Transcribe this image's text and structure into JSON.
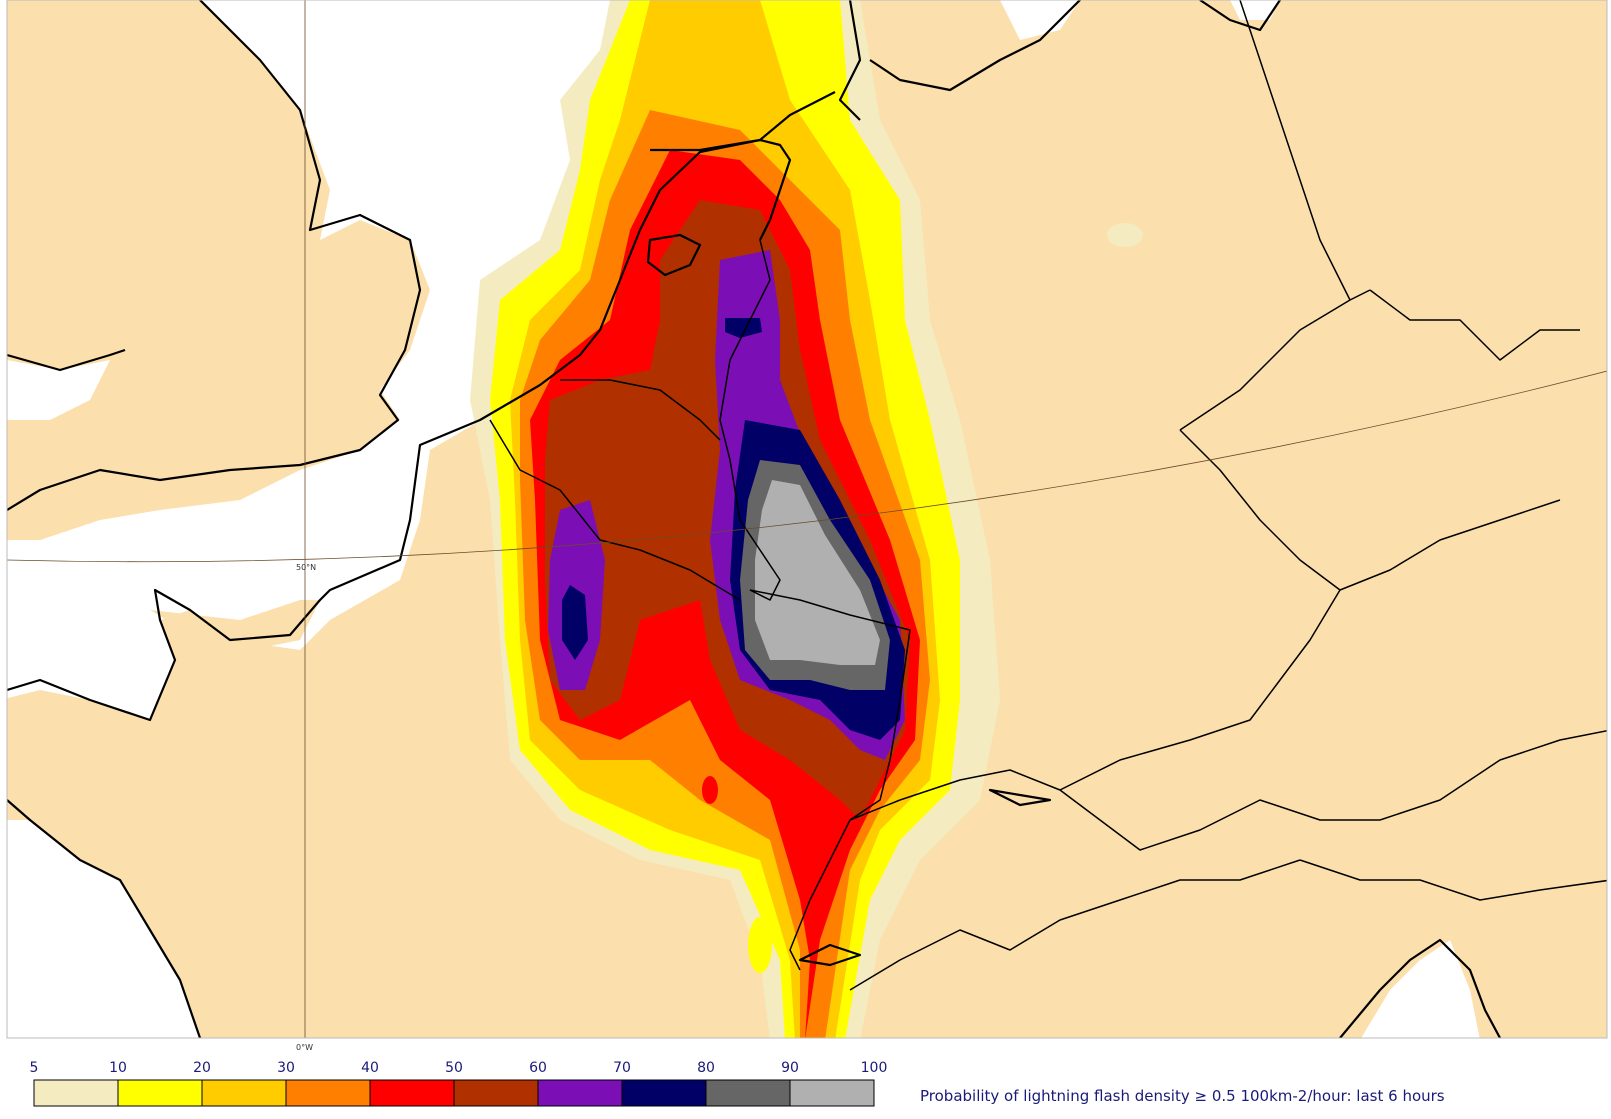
{
  "map": {
    "grid_labels": {
      "lat_50": "50°N",
      "lon_0": "0°W"
    },
    "colors": {
      "land": "#fbdfad",
      "sea": "#ffffff",
      "coast": "#000000"
    }
  },
  "legend": {
    "tick_labels": [
      "5",
      "10",
      "20",
      "30",
      "40",
      "50",
      "60",
      "70",
      "80",
      "90",
      "100"
    ],
    "colors": [
      "#f4ecc0",
      "#ffff00",
      "#ffcc00",
      "#ff8000",
      "#ff0000",
      "#b03000",
      "#7b0fb5",
      "#000066",
      "#666666",
      "#b0b0b0"
    ],
    "caption": "Probability of lightning flash density ≥ 0.5 100km-2/hour: last 6 hours"
  }
}
